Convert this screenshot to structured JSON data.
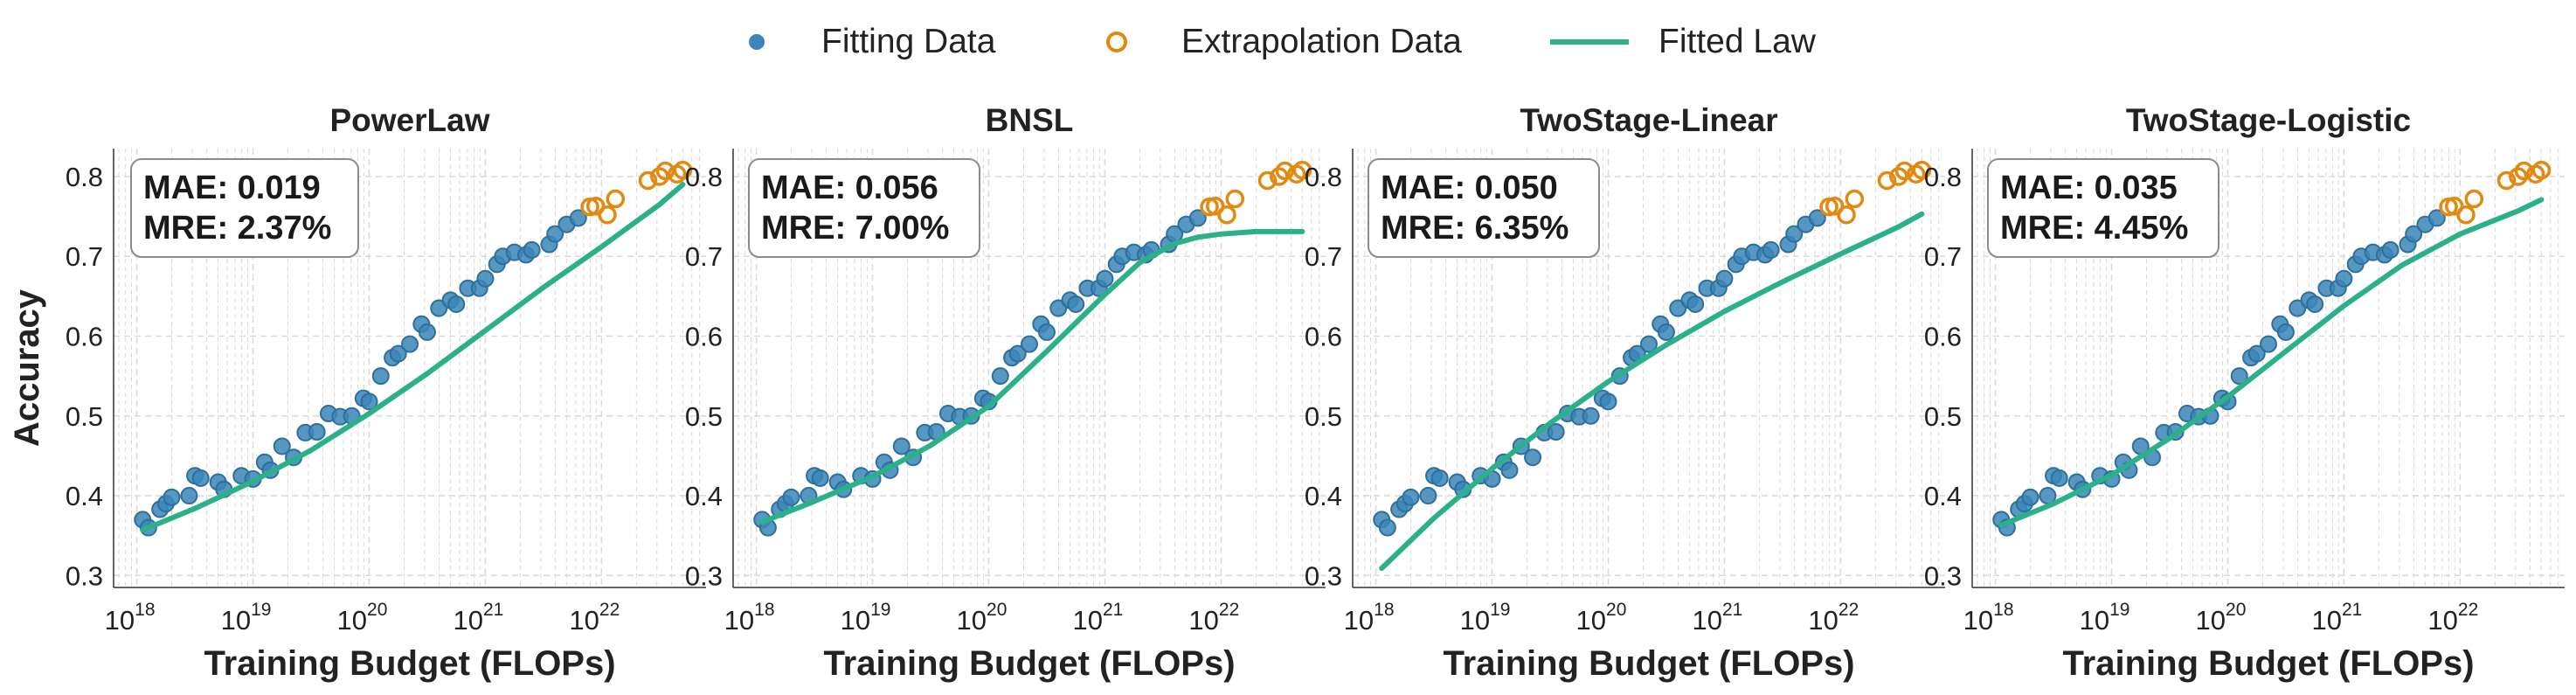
{
  "legend": {
    "items": [
      {
        "label": "Fitting Data",
        "marker": "filled-circle",
        "color": "#3a86b8"
      },
      {
        "label": "Extrapolation Data",
        "marker": "hollow-circle",
        "color": "#e08a12"
      },
      {
        "label": "Fitted Law",
        "marker": "line",
        "color": "#2bb08a"
      }
    ]
  },
  "colors": {
    "fit_fill": "#3a86b8",
    "fit_edge": "#2f6f9c",
    "extrap": "#e08a12",
    "law": "#2bb08a",
    "grid": "#d9d9d9",
    "box_edge": "#8c8c8c"
  },
  "chart_data": [
    {
      "type": "scatter",
      "title": "PowerLaw",
      "xlabel": "Training Budget (FLOPs)",
      "ylabel": "Accuracy",
      "xscale": "log",
      "xlim_log10": [
        17.8,
        22.9
      ],
      "ylim": [
        0.285,
        0.835
      ],
      "xticks_exp": [
        18,
        19,
        20,
        21,
        22
      ],
      "yticks": [
        "0.3",
        "0.4",
        "0.5",
        "0.6",
        "0.7",
        "0.8"
      ],
      "metrics": {
        "mae": "MAE: 0.019",
        "mre": "MRE: 2.37%"
      },
      "fitted_law": {
        "x_log10": [
          18.05,
          18.5,
          19.0,
          19.5,
          20.0,
          20.5,
          21.0,
          21.5,
          22.0,
          22.5,
          22.7
        ],
        "y": [
          0.357,
          0.384,
          0.418,
          0.457,
          0.503,
          0.553,
          0.607,
          0.661,
          0.712,
          0.765,
          0.79
        ]
      }
    },
    {
      "type": "scatter",
      "title": "BNSL",
      "xlabel": "Training Budget (FLOPs)",
      "ylabel": "",
      "xscale": "log",
      "xlim_log10": [
        17.8,
        22.9
      ],
      "ylim": [
        0.285,
        0.835
      ],
      "xticks_exp": [
        18,
        19,
        20,
        21,
        22
      ],
      "yticks": [
        "0.3",
        "0.4",
        "0.5",
        "0.6",
        "0.7",
        "0.8"
      ],
      "metrics": {
        "mae": "MAE: 0.056",
        "mre": "MRE: 7.00%"
      },
      "fitted_law": {
        "x_log10": [
          18.05,
          18.5,
          19.0,
          19.5,
          20.0,
          20.5,
          21.0,
          21.3,
          21.6,
          21.8,
          22.0,
          22.3,
          22.7
        ],
        "y": [
          0.367,
          0.393,
          0.424,
          0.463,
          0.512,
          0.581,
          0.652,
          0.692,
          0.716,
          0.724,
          0.728,
          0.731,
          0.731
        ]
      }
    },
    {
      "type": "scatter",
      "title": "TwoStage-Linear",
      "xlabel": "Training Budget (FLOPs)",
      "ylabel": "",
      "xscale": "log",
      "xlim_log10": [
        17.8,
        22.9
      ],
      "ylim": [
        0.285,
        0.835
      ],
      "xticks_exp": [
        18,
        19,
        20,
        21,
        22
      ],
      "yticks": [
        "0.3",
        "0.4",
        "0.5",
        "0.6",
        "0.7",
        "0.8"
      ],
      "metrics": {
        "mae": "MAE: 0.050",
        "mre": "MRE: 6.35%"
      },
      "fitted_law": {
        "x_log10": [
          18.05,
          18.5,
          19.0,
          19.5,
          20.0,
          20.5,
          21.0,
          21.5,
          22.0,
          22.5,
          22.7
        ],
        "y": [
          0.309,
          0.372,
          0.434,
          0.491,
          0.543,
          0.589,
          0.631,
          0.668,
          0.703,
          0.737,
          0.753
        ]
      }
    },
    {
      "type": "scatter",
      "title": "TwoStage-Logistic",
      "xlabel": "Training Budget (FLOPs)",
      "ylabel": "",
      "xscale": "log",
      "xlim_log10": [
        17.8,
        22.9
      ],
      "ylim": [
        0.285,
        0.835
      ],
      "xticks_exp": [
        18,
        19,
        20,
        21,
        22
      ],
      "yticks": [
        "0.3",
        "0.4",
        "0.5",
        "0.6",
        "0.7",
        "0.8"
      ],
      "metrics": {
        "mae": "MAE: 0.035",
        "mre": "MRE: 4.45%"
      },
      "fitted_law": {
        "x_log10": [
          18.05,
          18.5,
          19.0,
          19.5,
          20.0,
          20.5,
          21.0,
          21.5,
          22.0,
          22.5,
          22.7
        ],
        "y": [
          0.363,
          0.39,
          0.426,
          0.472,
          0.524,
          0.581,
          0.638,
          0.689,
          0.728,
          0.757,
          0.771
        ]
      }
    }
  ],
  "fitting_points": {
    "x_log10": [
      18.05,
      18.1,
      18.2,
      18.25,
      18.3,
      18.45,
      18.5,
      18.55,
      18.7,
      18.75,
      18.9,
      19.0,
      19.1,
      19.15,
      19.25,
      19.35,
      19.45,
      19.55,
      19.65,
      19.75,
      19.85,
      19.95,
      20.0,
      20.1,
      20.2,
      20.25,
      20.35,
      20.45,
      20.5,
      20.6,
      20.7,
      20.75,
      20.85,
      20.95,
      21.0,
      21.1,
      21.15,
      21.25,
      21.35,
      21.4,
      21.55,
      21.6,
      21.7,
      21.8
    ],
    "y": [
      0.37,
      0.36,
      0.383,
      0.39,
      0.398,
      0.4,
      0.425,
      0.422,
      0.417,
      0.408,
      0.425,
      0.421,
      0.442,
      0.432,
      0.462,
      0.448,
      0.479,
      0.48,
      0.503,
      0.499,
      0.5,
      0.522,
      0.518,
      0.55,
      0.573,
      0.578,
      0.59,
      0.615,
      0.605,
      0.635,
      0.645,
      0.64,
      0.66,
      0.66,
      0.672,
      0.69,
      0.7,
      0.705,
      0.702,
      0.708,
      0.715,
      0.728,
      0.74,
      0.748
    ]
  },
  "extrapolation_points": {
    "x_log10": [
      21.9,
      21.95,
      22.05,
      22.12,
      22.4,
      22.5,
      22.55,
      22.65,
      22.7
    ],
    "y": [
      0.762,
      0.763,
      0.752,
      0.772,
      0.795,
      0.8,
      0.807,
      0.803,
      0.808
    ]
  }
}
